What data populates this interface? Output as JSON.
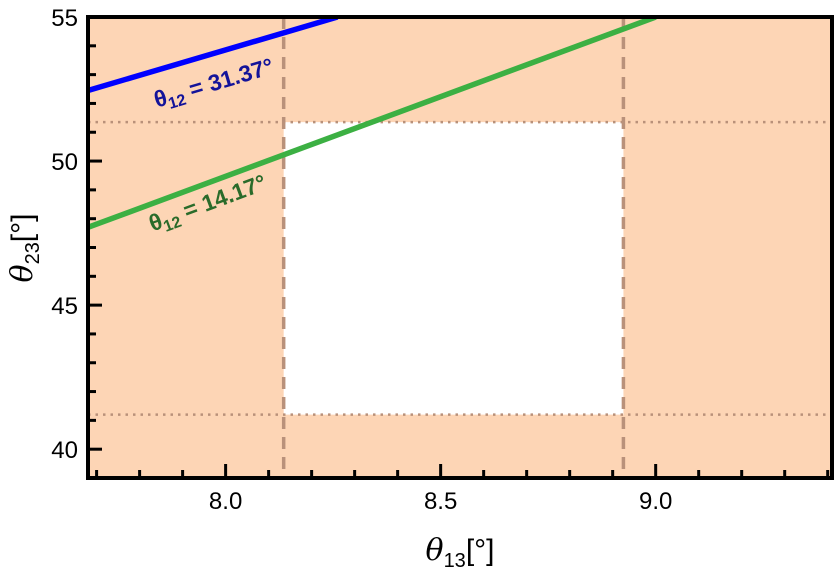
{
  "chart_data": {
    "type": "line",
    "xlabel": {
      "symbol": "θ",
      "sub": "13",
      "unit": "[°]"
    },
    "ylabel": {
      "symbol": "θ",
      "sub": "23",
      "unit": "[°]"
    },
    "xlim": [
      7.68,
      9.41
    ],
    "ylim": [
      39.0,
      55.0
    ],
    "x_ticks": [
      "8.0",
      "8.5",
      "9.0"
    ],
    "y_ticks": [
      "40",
      "45",
      "50",
      "55"
    ],
    "x_tick_values": [
      8.0,
      8.5,
      9.0
    ],
    "y_tick_values": [
      40,
      45,
      50,
      55
    ],
    "x_minor_step": 0.1,
    "y_minor_step": 1,
    "background_color": "#fdd5b5",
    "allowed_region": {
      "x": [
        8.135,
        8.925
      ],
      "y": [
        41.2,
        51.35
      ],
      "color": "#ffffff"
    },
    "vertical_dashed_lines": [
      8.135,
      8.925
    ],
    "horizontal_dotted_lines": [
      41.2,
      51.35
    ],
    "reference_line_color": "#b9917a",
    "series": [
      {
        "name": "θ₁₂ = 31.37°",
        "label_symbol": "θ",
        "label_sub": "12",
        "label_value": " = 31.37°",
        "color": "#0000ff",
        "label_color": "#13139a",
        "x": [
          7.68,
          8.26
        ],
        "y": [
          52.45,
          55.0
        ]
      },
      {
        "name": "θ₁₂ = 14.17°",
        "label_symbol": "θ",
        "label_sub": "12",
        "label_value": " = 14.17°",
        "color": "#3cb043",
        "label_color": "#2a6b2a",
        "x": [
          7.68,
          9.0
        ],
        "y": [
          47.7,
          55.0
        ]
      }
    ]
  }
}
